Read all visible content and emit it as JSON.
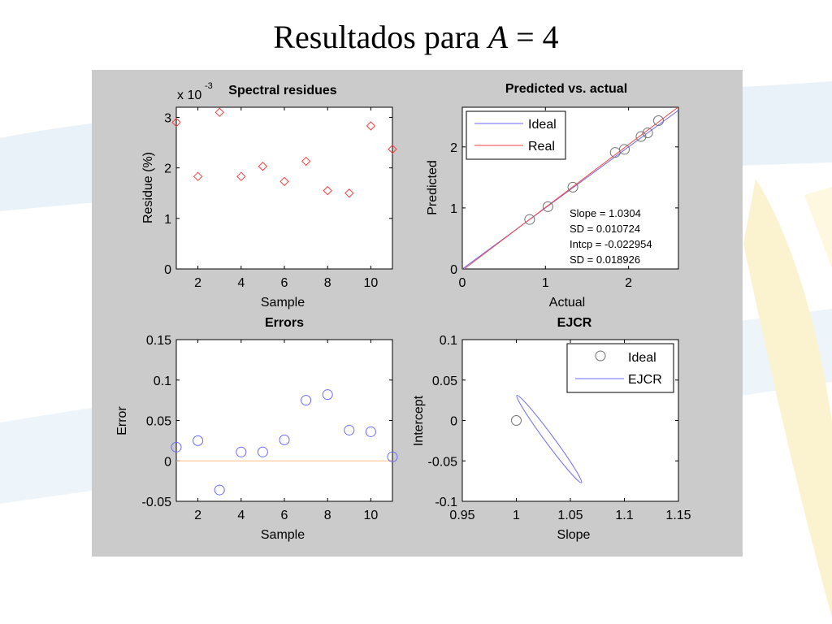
{
  "slide": {
    "title_prefix": "Resultados para ",
    "title_var": "A",
    "title_suffix": " = 4"
  },
  "colors": {
    "figure_background": "#cbcbcb",
    "axes_background": "#ffffff",
    "series_red": "#ff4040",
    "series_blue": "#6a6aff",
    "zero_line": "#ffbe80",
    "ideal_marker": "#707070"
  },
  "chart_data": [
    {
      "id": "spectral",
      "type": "scatter",
      "title": "Spectral residues",
      "exponent_label": "x 10",
      "exponent_power": "-3",
      "xlabel": "Sample",
      "ylabel": "Residue (%)",
      "xlim": [
        1,
        11
      ],
      "ylim": [
        0,
        3.2
      ],
      "xticks": [
        2,
        4,
        6,
        8,
        10
      ],
      "yticks": [
        0,
        1,
        2,
        3
      ],
      "marker": "diamond",
      "series": [
        {
          "x": [
            1,
            2,
            3,
            4,
            5,
            6,
            7,
            8,
            9,
            10,
            11
          ],
          "y": [
            2.9,
            1.83,
            3.1,
            1.83,
            2.03,
            1.73,
            2.13,
            1.55,
            1.5,
            2.83,
            2.37
          ]
        }
      ]
    },
    {
      "id": "predicted",
      "type": "scatter",
      "title": "Predicted vs. actual",
      "xlabel": "Actual",
      "ylabel": "Predicted",
      "xlim": [
        0,
        2.6
      ],
      "ylim": [
        0,
        2.65
      ],
      "xticks": [
        0,
        1,
        2
      ],
      "yticks": [
        0,
        1,
        2
      ],
      "legend": {
        "position": "top-left",
        "entries": [
          "Ideal",
          "Real"
        ]
      },
      "lines": [
        {
          "name": "Ideal",
          "slope": 1,
          "intercept": 0
        },
        {
          "name": "Real",
          "slope": 1.0304,
          "intercept": -0.022954
        }
      ],
      "points": {
        "x": [
          0.81,
          1.03,
          1.33,
          1.84,
          1.95,
          2.15,
          2.23,
          2.36
        ],
        "y": [
          0.81,
          1.02,
          1.34,
          1.91,
          1.96,
          2.17,
          2.23,
          2.43
        ]
      },
      "annotations": [
        "Slope = 1.0304",
        "SD = 0.010724",
        "Intcp = -0.022954",
        "SD = 0.018926"
      ]
    },
    {
      "id": "errors",
      "type": "scatter",
      "title": "Errors",
      "xlabel": "Sample",
      "ylabel": "Error",
      "xlim": [
        1,
        11
      ],
      "ylim": [
        -0.05,
        0.15
      ],
      "xticks": [
        2,
        4,
        6,
        8,
        10
      ],
      "yticks": [
        -0.05,
        0,
        0.05,
        0.1,
        0.15
      ],
      "ytick_labels": [
        "-0.05",
        "0",
        "0.05",
        "0.1",
        "0.15"
      ],
      "marker": "circle",
      "zero_line": true,
      "series": [
        {
          "x": [
            1,
            2,
            3,
            4,
            5,
            6,
            7,
            8,
            9,
            10,
            11
          ],
          "y": [
            0.017,
            0.025,
            -0.036,
            0.011,
            0.011,
            0.026,
            0.075,
            0.082,
            0.038,
            0.036,
            0.005
          ]
        }
      ]
    },
    {
      "id": "ejcr",
      "type": "scatter",
      "title": "EJCR",
      "xlabel": "Slope",
      "ylabel": "Intercept",
      "xlim": [
        0.95,
        1.15
      ],
      "ylim": [
        -0.1,
        0.1
      ],
      "xticks": [
        0.95,
        1,
        1.05,
        1.1,
        1.15
      ],
      "xtick_labels": [
        "0.95",
        "1",
        "1.05",
        "1.1",
        "1.15"
      ],
      "yticks": [
        -0.1,
        -0.05,
        0,
        0.05,
        0.1
      ],
      "ytick_labels": [
        "-0.1",
        "-0.05",
        "0",
        "0.05",
        "0.1"
      ],
      "legend": {
        "position": "top-right",
        "entries": [
          "Ideal",
          "EJCR"
        ]
      },
      "ideal_point": {
        "x": 1,
        "y": 0
      },
      "ellipse": {
        "center": {
          "x": 1.0304,
          "y": -0.022954
        },
        "extremes": [
          {
            "x": 1.0005,
            "y": 0.031
          },
          {
            "x": 1.0603,
            "y": -0.077
          }
        ],
        "half_width": 0.004
      }
    }
  ]
}
